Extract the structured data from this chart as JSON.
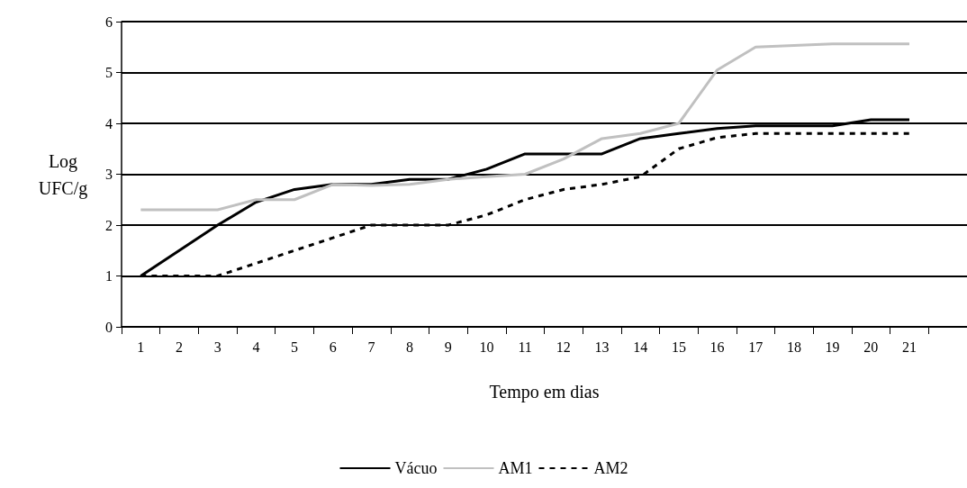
{
  "chart_data": {
    "type": "line",
    "ylabel": "Log\nUFC/g",
    "xlabel": "Tempo em dias",
    "categories": [
      "1",
      "2",
      "3",
      "4",
      "5",
      "6",
      "7",
      "8",
      "9",
      "10",
      "11",
      "12",
      "13",
      "14",
      "15",
      "16",
      "17",
      "18",
      "19",
      "20",
      "21",
      null
    ],
    "series": [
      {
        "name": "Vácuo",
        "color": "#000000",
        "line_style": "solid",
        "values": [
          1,
          1.5,
          2,
          2.45,
          2.7,
          2.8,
          2.8,
          2.9,
          2.9,
          3.1,
          3.4,
          3.4,
          3.4,
          3.7,
          3.8,
          3.9,
          3.95,
          3.95,
          3.95,
          4.07,
          4.07,
          null
        ]
      },
      {
        "name": "AM1",
        "color": "#c0c0c0",
        "line_style": "solid",
        "values": [
          2.3,
          2.3,
          2.3,
          2.5,
          2.5,
          2.8,
          2.78,
          2.8,
          2.9,
          2.95,
          3.0,
          3.3,
          3.7,
          3.8,
          4.0,
          5.05,
          5.5,
          5.53,
          5.56,
          5.56,
          5.56,
          null
        ]
      },
      {
        "name": "AM2",
        "color": "#000000",
        "line_style": "dashed",
        "values": [
          1,
          1,
          1,
          1.25,
          1.5,
          1.75,
          2,
          2,
          2,
          2.2,
          2.5,
          2.7,
          2.8,
          2.95,
          3.5,
          3.72,
          3.8,
          3.8,
          3.8,
          3.8,
          3.8,
          null
        ]
      }
    ],
    "ylim": [
      0,
      6
    ],
    "yticks": [
      0,
      1,
      2,
      3,
      4,
      5,
      6
    ],
    "grid": "y",
    "legend": "bottom",
    "marker": "none"
  }
}
